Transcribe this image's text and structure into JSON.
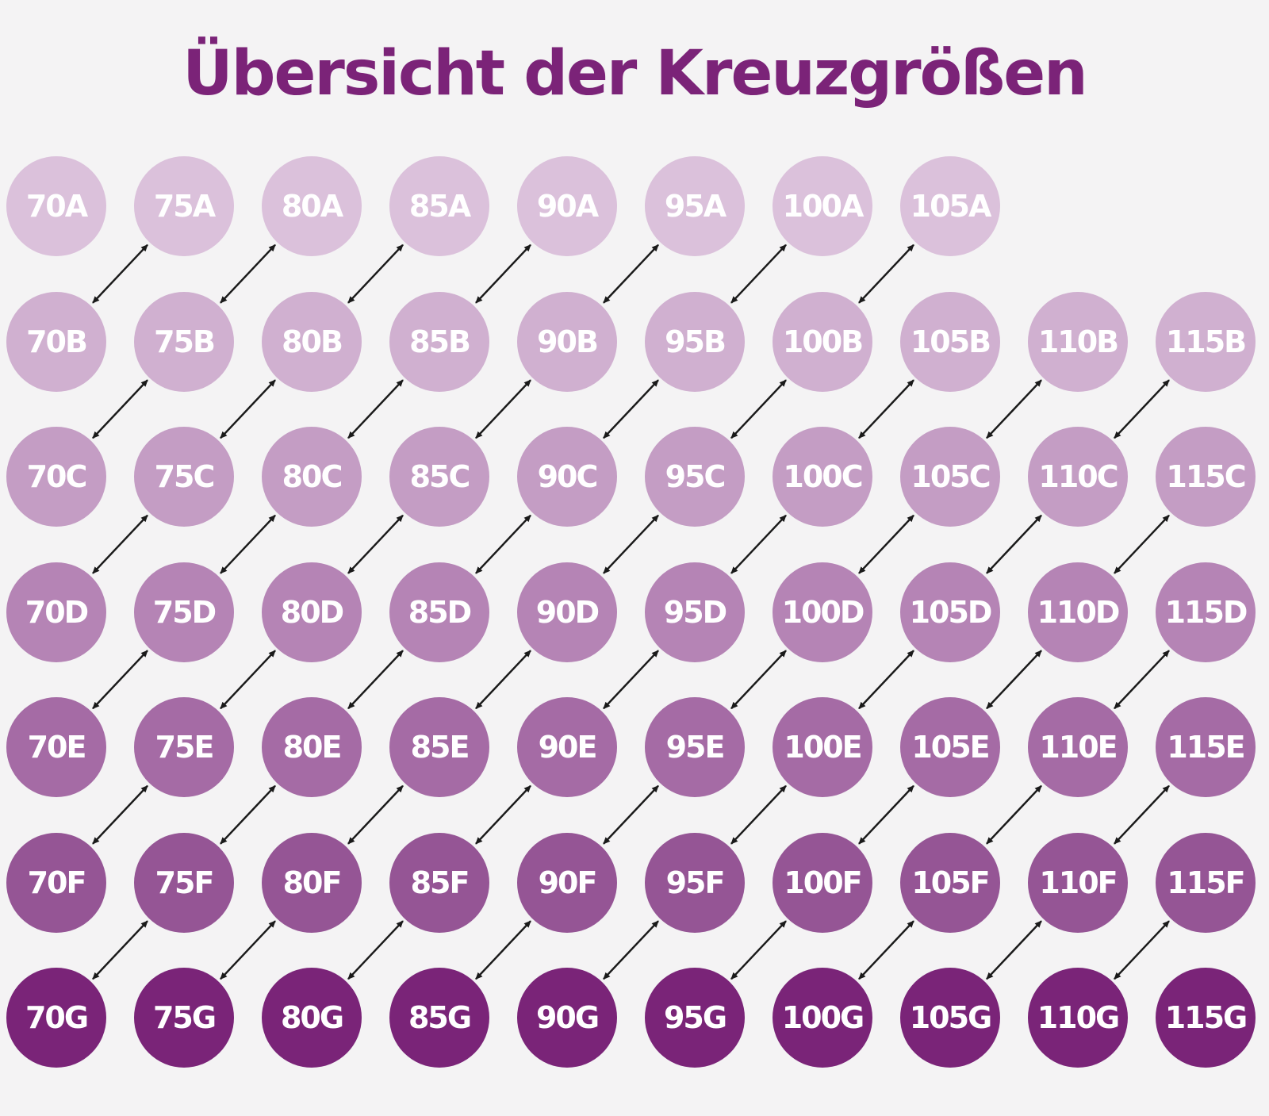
{
  "title": "Übersicht der Kreuzgrößen",
  "colors": {
    "title": "#7b2378",
    "arrow": "#1a1a1a",
    "label": "#ffffff",
    "rows": [
      "#dbc1db",
      "#d0b0d0",
      "#c49dc4",
      "#b584b5",
      "#a56ba5",
      "#955595",
      "#7a2478"
    ]
  },
  "rows": [
    {
      "cup": "A",
      "sizes": [
        "70A",
        "75A",
        "80A",
        "85A",
        "90A",
        "95A",
        "100A",
        "105A"
      ]
    },
    {
      "cup": "B",
      "sizes": [
        "70B",
        "75B",
        "80B",
        "85B",
        "90B",
        "95B",
        "100B",
        "105B",
        "110B",
        "115B"
      ]
    },
    {
      "cup": "C",
      "sizes": [
        "70C",
        "75C",
        "80C",
        "85C",
        "90C",
        "95C",
        "100C",
        "105C",
        "110C",
        "115C"
      ]
    },
    {
      "cup": "D",
      "sizes": [
        "70D",
        "75D",
        "80D",
        "85D",
        "90D",
        "95D",
        "100D",
        "105D",
        "110D",
        "115D"
      ]
    },
    {
      "cup": "E",
      "sizes": [
        "70E",
        "75E",
        "80E",
        "85E",
        "90E",
        "95E",
        "100E",
        "105E",
        "110E",
        "115E"
      ]
    },
    {
      "cup": "F",
      "sizes": [
        "70F",
        "75F",
        "80F",
        "85F",
        "90F",
        "95F",
        "100F",
        "105F",
        "110F",
        "115F"
      ]
    },
    {
      "cup": "G",
      "sizes": [
        "70G",
        "75G",
        "80G",
        "85G",
        "90G",
        "95G",
        "100G",
        "105G",
        "110G",
        "115G"
      ]
    }
  ]
}
